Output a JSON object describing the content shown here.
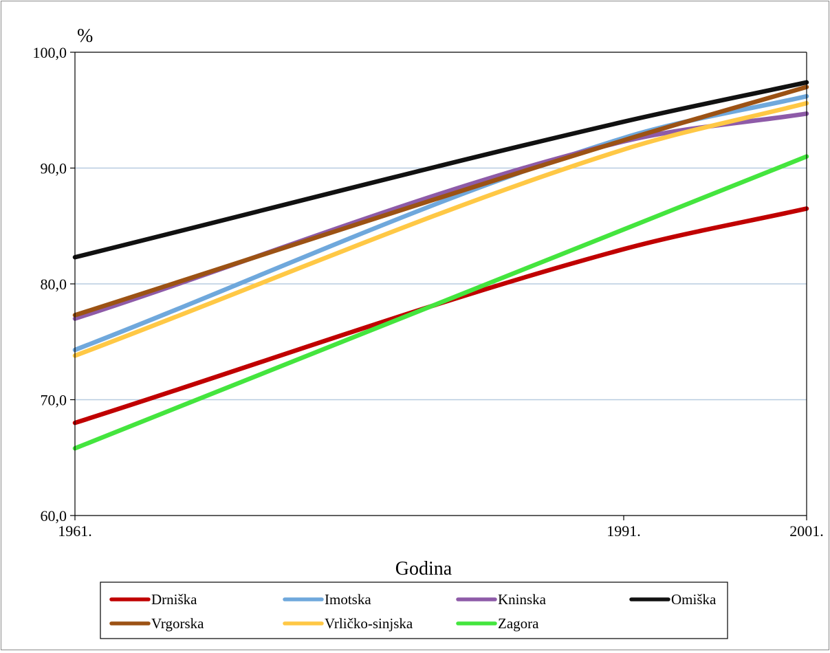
{
  "chart_data": {
    "type": "line",
    "title": "",
    "xlabel": "Godina",
    "ylabel": "%",
    "x": [
      "1961.",
      "1991.",
      "2001."
    ],
    "x_values": [
      1961,
      1991,
      2001
    ],
    "xlim": [
      1961,
      2001
    ],
    "ylim": [
      60,
      100
    ],
    "y_ticks": [
      "60,0",
      "70,0",
      "80,0",
      "90,0",
      "100,0"
    ],
    "y_tick_values": [
      60,
      70,
      80,
      90,
      100
    ],
    "grid": "horizontal",
    "legend_position": "bottom",
    "series": [
      {
        "name": "Drniška",
        "color": "#c00000",
        "values": [
          68.0,
          83.0,
          86.5
        ]
      },
      {
        "name": "Imotska",
        "color": "#6fa8dc",
        "values": [
          74.3,
          92.6,
          96.2
        ]
      },
      {
        "name": "Kninska",
        "color": "#8e5ba8",
        "values": [
          77.0,
          92.3,
          94.7
        ]
      },
      {
        "name": "Omiška",
        "color": "#111111",
        "values": [
          82.3,
          94.0,
          97.4
        ]
      },
      {
        "name": "Vrgorska",
        "color": "#9c5214",
        "values": [
          77.3,
          92.4,
          97.0
        ]
      },
      {
        "name": "Vrličko-sinjska",
        "color": "#ffc845",
        "values": [
          73.8,
          91.6,
          95.6
        ]
      },
      {
        "name": "Zagora",
        "color": "#44e53e",
        "values": [
          65.8,
          84.7,
          91.0
        ]
      }
    ]
  }
}
